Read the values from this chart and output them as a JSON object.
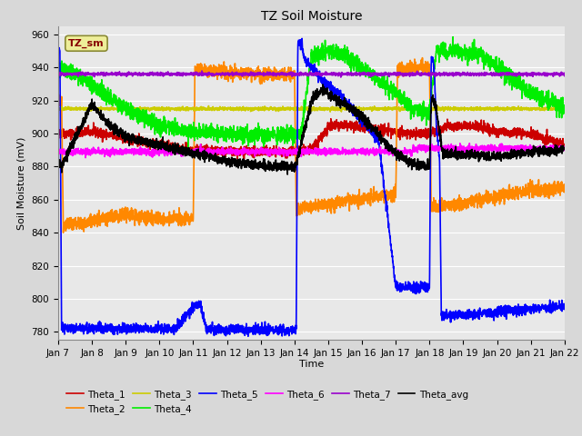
{
  "title": "TZ Soil Moisture",
  "xlabel": "Time",
  "ylabel": "Soil Moisture (mV)",
  "ylim": [
    775,
    965
  ],
  "yticks": [
    780,
    800,
    820,
    840,
    860,
    880,
    900,
    920,
    940,
    960
  ],
  "xtick_labels": [
    "Jan 7",
    "Jan 8",
    "Jan 9",
    "Jan 10",
    "Jan 11",
    "Jan 12",
    "Jan 13",
    "Jan 14",
    "Jan 15",
    "Jan 16",
    "Jan 17",
    "Jan 18",
    "Jan 19",
    "Jan 20",
    "Jan 21",
    "Jan 22"
  ],
  "colors": {
    "Theta_1": "#cc0000",
    "Theta_2": "#ff8800",
    "Theta_3": "#cccc00",
    "Theta_4": "#00ee00",
    "Theta_5": "#0000ff",
    "Theta_6": "#ff00ff",
    "Theta_7": "#9900cc",
    "Theta_avg": "#000000"
  },
  "background_color": "#d8d8d8",
  "plot_bg": "#e8e8e8",
  "legend_box_facecolor": "#eeee99",
  "legend_box_edgecolor": "#888833",
  "legend_text_color": "#880000",
  "title_fontsize": 10,
  "axis_fontsize": 8,
  "tick_fontsize": 7.5,
  "linewidth": 1.2
}
